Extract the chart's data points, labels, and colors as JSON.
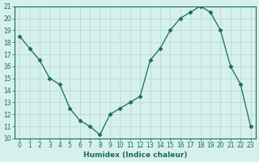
{
  "x": [
    0,
    1,
    2,
    3,
    4,
    5,
    6,
    7,
    8,
    9,
    10,
    11,
    12,
    13,
    14,
    15,
    16,
    17,
    18,
    19,
    20,
    21,
    22,
    23
  ],
  "y": [
    18.5,
    17.5,
    16.5,
    15.0,
    14.5,
    12.5,
    11.5,
    11.0,
    10.3,
    12.0,
    12.5,
    13.0,
    13.5,
    16.5,
    17.5,
    19.0,
    20.0,
    20.5,
    21.0,
    20.5,
    19.0,
    16.0,
    14.5,
    11.0
  ],
  "line_color": "#1a6b5a",
  "marker": "D",
  "marker_size": 2.5,
  "bg_color": "#d6f0ec",
  "grid_color": "#b0d8d2",
  "xlabel": "Humidex (Indice chaleur)",
  "ylim": [
    10,
    21
  ],
  "xlim": [
    -0.5,
    23.5
  ],
  "yticks": [
    10,
    11,
    12,
    13,
    14,
    15,
    16,
    17,
    18,
    19,
    20,
    21
  ],
  "xticks": [
    0,
    1,
    2,
    3,
    4,
    5,
    6,
    7,
    8,
    9,
    10,
    11,
    12,
    13,
    14,
    15,
    16,
    17,
    18,
    19,
    20,
    21,
    22,
    23
  ],
  "tick_color": "#1a6b5a",
  "axis_color": "#1a6b5a"
}
